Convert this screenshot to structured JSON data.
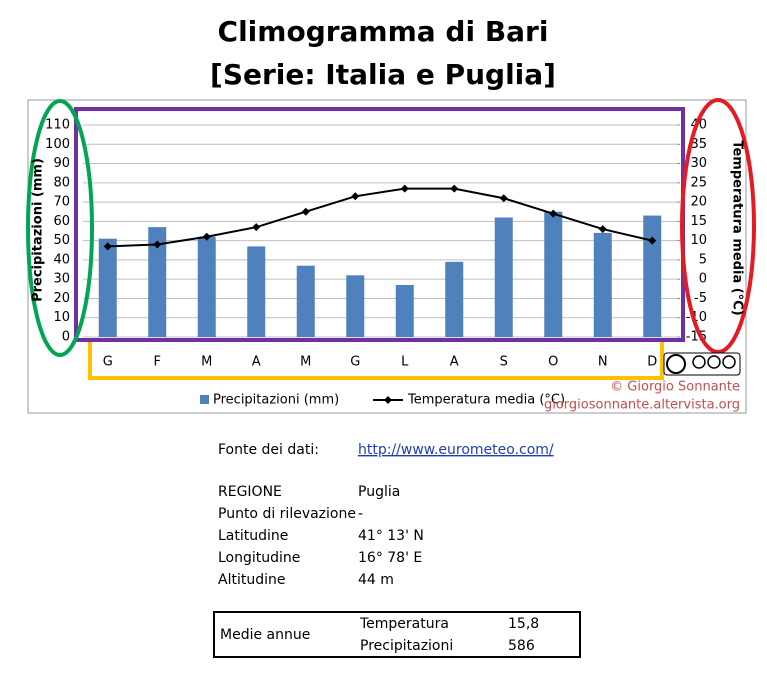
{
  "chart_data": {
    "type": "bar-line",
    "title": "Climogramma di Bari",
    "subtitle": "[Serie: Italia e Puglia]",
    "categories": [
      "G",
      "F",
      "M",
      "A",
      "M",
      "G",
      "L",
      "A",
      "S",
      "O",
      "N",
      "D"
    ],
    "y_label": "Precipitazioni (mm)",
    "y2_label": "Temperatura media (°C)",
    "ylim": [
      0,
      110
    ],
    "yticks": [
      0,
      10,
      20,
      30,
      40,
      50,
      60,
      70,
      80,
      90,
      100,
      110
    ],
    "y2lim": [
      -15,
      40
    ],
    "y2ticks": [
      -15,
      -10,
      -5,
      0,
      5,
      10,
      15,
      20,
      25,
      30,
      35,
      40
    ],
    "grid": true,
    "series": [
      {
        "name": "Precipitazioni (mm)",
        "type": "bar",
        "color": "#4f81bd",
        "values": [
          51,
          57,
          52,
          47,
          37,
          32,
          27,
          39,
          62,
          65,
          54,
          63
        ]
      },
      {
        "name": "Temperatura media (°C)",
        "type": "line",
        "axis": "y2",
        "color": "#000000",
        "values": [
          8.5,
          9,
          11,
          13.5,
          17.5,
          21.5,
          23.5,
          23.5,
          21,
          17,
          13,
          10
        ]
      }
    ]
  },
  "credit": {
    "author": "© Giorgio Sonnante",
    "site": "giorgiosonnante.altervista.org"
  },
  "source": {
    "label": "Fonte dei dati:",
    "url": "http://www.eurometeo.com/"
  },
  "info": {
    "rows": [
      [
        "REGIONE",
        "Puglia"
      ],
      [
        "Punto di rilevazione",
        "-"
      ],
      [
        "Latitudine",
        "41° 13' N"
      ],
      [
        "Longitudine",
        "16° 78' E"
      ],
      [
        "Altitudine",
        "44 m"
      ]
    ]
  },
  "averages": {
    "label": "Medie annue",
    "rows": [
      [
        "Temperatura",
        "15,8"
      ],
      [
        "Precipitazioni",
        "586"
      ]
    ]
  }
}
